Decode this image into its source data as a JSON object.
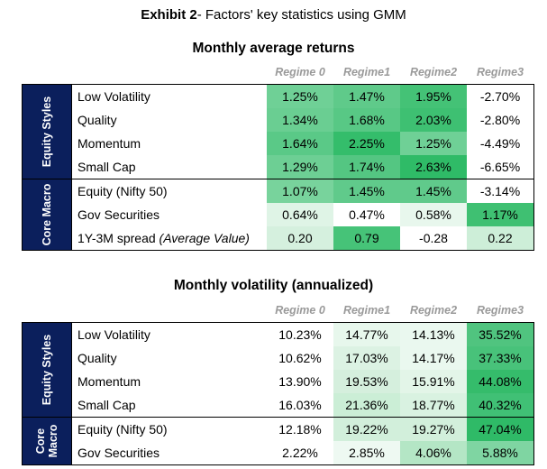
{
  "exhibit": {
    "prefix": "Exhibit 2",
    "rest": "- Factors' key statistics using GMM"
  },
  "tables": [
    {
      "title": "Monthly average returns",
      "headers": [
        "Regime 0",
        "Regime1",
        "Regime2",
        "Regime3"
      ],
      "groups": [
        {
          "name": "Equity Styles",
          "rows": [
            {
              "label": "Low Volatility",
              "values": [
                "1.25%",
                "1.47%",
                "1.95%",
                "-2.70%"
              ],
              "colors": [
                "#6fd096",
                "#5fca8a",
                "#44c276",
                "#ffffff"
              ]
            },
            {
              "label": "Quality",
              "values": [
                "1.34%",
                "1.68%",
                "2.03%",
                "-2.80%"
              ],
              "colors": [
                "#6ace92",
                "#58c885",
                "#3ec072",
                "#ffffff"
              ]
            },
            {
              "label": "Momentum",
              "values": [
                "1.64%",
                "2.25%",
                "1.25%",
                "-4.49%"
              ],
              "colors": [
                "#5ac987",
                "#34bd6b",
                "#6fd096",
                "#ffffff"
              ]
            },
            {
              "label": "Small Cap",
              "values": [
                "1.29%",
                "1.74%",
                "2.63%",
                "-6.65%"
              ],
              "colors": [
                "#6dcf94",
                "#54c682",
                "#2fbb67",
                "#ffffff"
              ]
            }
          ]
        },
        {
          "name": "Core Macro",
          "rows": [
            {
              "label": "Equity (Nifty 50)",
              "label_italic": "",
              "values": [
                "1.07%",
                "1.45%",
                "1.45%",
                "-3.14%"
              ],
              "colors": [
                "#78d39c",
                "#60ca8b",
                "#60ca8b",
                "#ffffff"
              ]
            },
            {
              "label": "Gov Securities",
              "label_italic": "",
              "values": [
                "0.64%",
                "0.47%",
                "0.58%",
                "1.17%"
              ],
              "colors": [
                "#dff4e6",
                "#ffffff",
                "#e8f7ed",
                "#3fc072"
              ]
            },
            {
              "label": "1Y-3M spread ",
              "label_italic": "(Average Value)",
              "values": [
                "0.20",
                "0.79",
                "-0.28",
                "0.22"
              ],
              "colors": [
                "#d5f0de",
                "#46c378",
                "#ffffff",
                "#cdeed8"
              ]
            }
          ]
        }
      ]
    },
    {
      "title": "Monthly volatility (annualized)",
      "headers": [
        "Regime 0",
        "Regime1",
        "Regime2",
        "Regime3"
      ],
      "groups": [
        {
          "name": "Equity Styles",
          "rows": [
            {
              "label": "Low Volatility",
              "values": [
                "10.23%",
                "14.77%",
                "14.13%",
                "35.52%"
              ],
              "colors": [
                "#ffffff",
                "#e7f7ec",
                "#eaf8ef",
                "#50c47f"
              ]
            },
            {
              "label": "Quality",
              "values": [
                "10.62%",
                "17.03%",
                "14.17%",
                "37.33%"
              ],
              "colors": [
                "#ffffff",
                "#dcf2e3",
                "#eaf8ef",
                "#48c27a"
              ]
            },
            {
              "label": "Momentum",
              "values": [
                "13.90%",
                "19.53%",
                "15.91%",
                "44.08%"
              ],
              "colors": [
                "#ffffff",
                "#d5efdd",
                "#e3f5e8",
                "#35bc6b"
              ]
            },
            {
              "label": "Small Cap",
              "values": [
                "16.03%",
                "21.36%",
                "18.77%",
                "40.32%"
              ],
              "colors": [
                "#ffffff",
                "#cbeed6",
                "#d9f2e1",
                "#40c075"
              ]
            }
          ]
        },
        {
          "name": "Core Macro",
          "rows": [
            {
              "label": "Equity (Nifty 50)",
              "values": [
                "12.18%",
                "19.22%",
                "19.27%",
                "47.04%"
              ],
              "colors": [
                "#ffffff",
                "#d2efdb",
                "#d2efdb",
                "#2fba67"
              ]
            },
            {
              "label": "Gov Securities",
              "values": [
                "2.22%",
                "2.85%",
                "4.06%",
                "5.88%"
              ],
              "colors": [
                "#ffffff",
                "#eef9f2",
                "#b4e6c5",
                "#7fd5a2"
              ]
            }
          ]
        }
      ]
    }
  ]
}
